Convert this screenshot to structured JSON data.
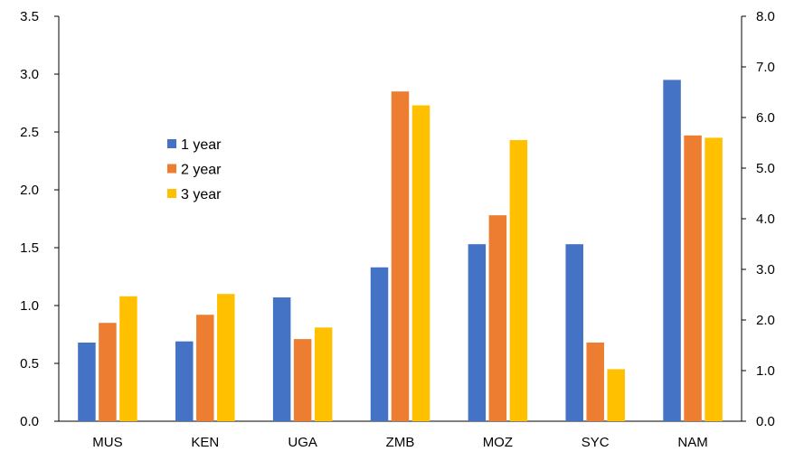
{
  "chart_data": {
    "type": "bar",
    "categories": [
      "MUS",
      "KEN",
      "UGA",
      "ZMB",
      "MOZ",
      "SYC",
      "NAM"
    ],
    "series": [
      {
        "name": "1 year",
        "color": "#4472C4",
        "values": [
          0.68,
          0.69,
          1.07,
          1.33,
          1.53,
          1.53,
          2.95
        ]
      },
      {
        "name": "2 year",
        "color": "#ED7D31",
        "values": [
          0.85,
          0.92,
          0.71,
          2.85,
          1.78,
          0.68,
          2.47
        ]
      },
      {
        "name": "3 year",
        "color": "#FFC000",
        "values": [
          1.08,
          1.1,
          0.81,
          2.73,
          2.43,
          0.45,
          2.45
        ]
      }
    ],
    "y_left": {
      "min": 0,
      "max": 3.5,
      "ticks": [
        "0.0",
        "0.5",
        "1.0",
        "1.5",
        "2.0",
        "2.5",
        "3.0",
        "3.5"
      ]
    },
    "y_right": {
      "min": 0,
      "max": 8,
      "ticks": [
        "0.0",
        "1.0",
        "2.0",
        "3.0",
        "4.0",
        "5.0",
        "6.0",
        "7.0",
        "8.0"
      ]
    },
    "title": "",
    "xlabel": "",
    "ylabel": "",
    "grid": false,
    "legend_position": "upper-left-inside"
  }
}
